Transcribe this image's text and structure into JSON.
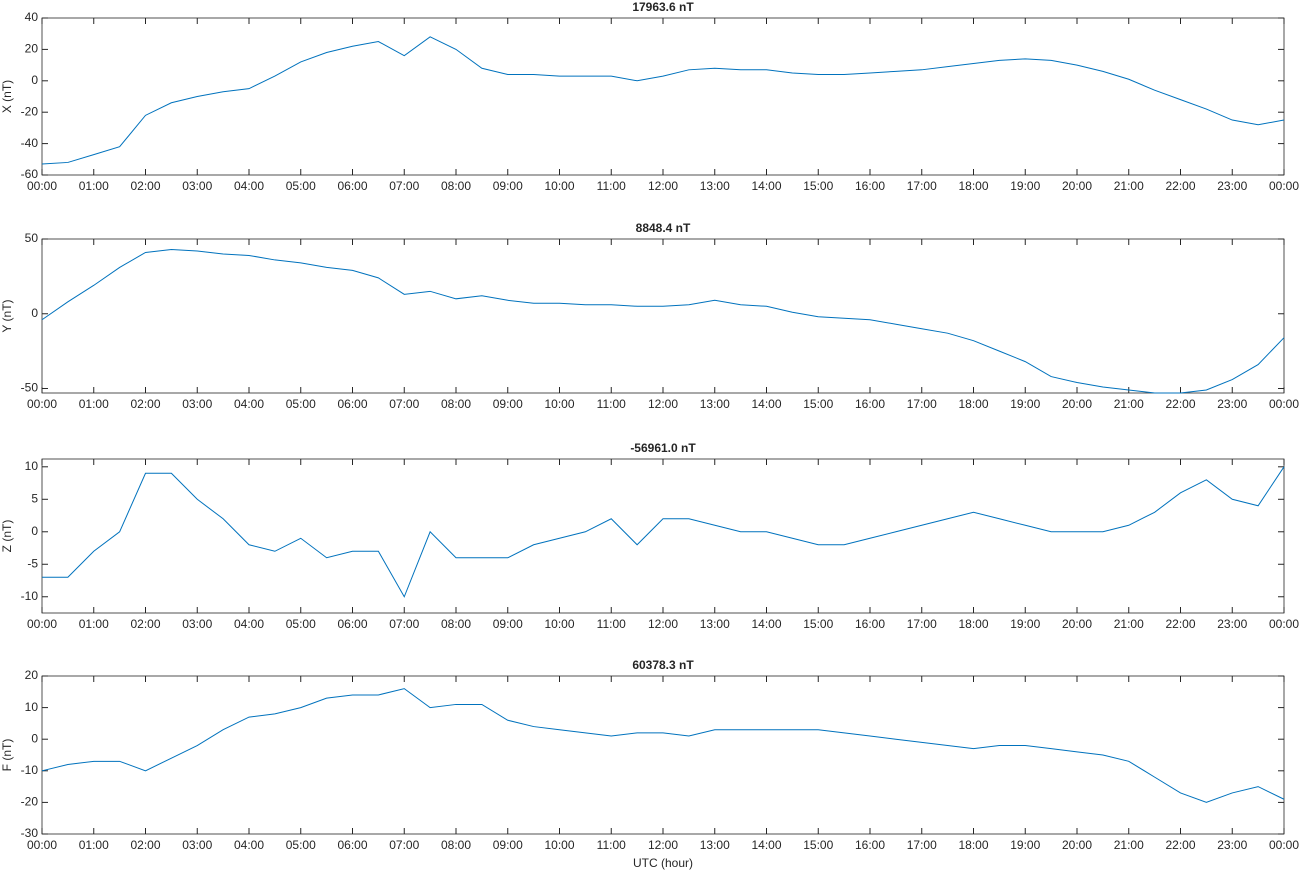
{
  "chart_data": [
    {
      "type": "line",
      "title": "17963.6 nT",
      "ylabel": "X (nT)",
      "color": "#0072bd",
      "x": [
        0,
        0.5,
        1,
        1.5,
        2,
        2.5,
        3,
        3.5,
        4,
        4.5,
        5,
        5.5,
        6,
        6.5,
        7,
        7.5,
        8,
        8.5,
        9,
        9.5,
        10,
        10.5,
        11,
        11.5,
        12,
        12.5,
        13,
        13.5,
        14,
        14.5,
        15,
        15.5,
        16,
        16.5,
        17,
        17.5,
        18,
        18.5,
        19,
        19.5,
        20,
        20.5,
        21,
        21.5,
        22,
        22.5,
        23,
        23.5,
        24
      ],
      "values": [
        -53,
        -52,
        -47,
        -42,
        -22,
        -14,
        -10,
        -7,
        -5,
        3,
        12,
        18,
        22,
        25,
        16,
        28,
        20,
        8,
        4,
        4,
        3,
        3,
        3,
        0,
        3,
        7,
        8,
        7,
        7,
        5,
        4,
        4,
        5,
        6,
        7,
        9,
        11,
        13,
        14,
        13,
        10,
        6,
        1,
        -6,
        -12,
        -18,
        -25,
        -28,
        -25
      ],
      "xlim": [
        0,
        24
      ],
      "xticks": [
        {
          "value": 0,
          "label": "00:00"
        },
        {
          "value": 1,
          "label": "01:00"
        },
        {
          "value": 2,
          "label": "02:00"
        },
        {
          "value": 3,
          "label": "03:00"
        },
        {
          "value": 4,
          "label": "04:00"
        },
        {
          "value": 5,
          "label": "05:00"
        },
        {
          "value": 6,
          "label": "06:00"
        },
        {
          "value": 7,
          "label": "07:00"
        },
        {
          "value": 8,
          "label": "08:00"
        },
        {
          "value": 9,
          "label": "09:00"
        },
        {
          "value": 10,
          "label": "10:00"
        },
        {
          "value": 11,
          "label": "11:00"
        },
        {
          "value": 12,
          "label": "12:00"
        },
        {
          "value": 13,
          "label": "13:00"
        },
        {
          "value": 14,
          "label": "14:00"
        },
        {
          "value": 15,
          "label": "15:00"
        },
        {
          "value": 16,
          "label": "16:00"
        },
        {
          "value": 17,
          "label": "17:00"
        },
        {
          "value": 18,
          "label": "18:00"
        },
        {
          "value": 19,
          "label": "19:00"
        },
        {
          "value": 20,
          "label": "20:00"
        },
        {
          "value": 21,
          "label": "21:00"
        },
        {
          "value": 22,
          "label": "22:00"
        },
        {
          "value": 23,
          "label": "23:00"
        },
        {
          "value": 24,
          "label": "00:00"
        }
      ],
      "ylim": [
        -60,
        40
      ],
      "yticks": [
        -60,
        -40,
        -20,
        0,
        20,
        40
      ]
    },
    {
      "type": "line",
      "title": "8848.4 nT",
      "ylabel": "Y (nT)",
      "color": "#0072bd",
      "x": [
        0,
        0.5,
        1,
        1.5,
        2,
        2.5,
        3,
        3.5,
        4,
        4.5,
        5,
        5.5,
        6,
        6.5,
        7,
        7.5,
        8,
        8.5,
        9,
        9.5,
        10,
        10.5,
        11,
        11.5,
        12,
        12.5,
        13,
        13.5,
        14,
        14.5,
        15,
        15.5,
        16,
        16.5,
        17,
        17.5,
        18,
        18.5,
        19,
        19.5,
        20,
        20.5,
        21,
        21.5,
        22,
        22.5,
        23,
        23.5,
        24
      ],
      "values": [
        -4,
        8,
        19,
        31,
        41,
        43,
        42,
        40,
        39,
        36,
        34,
        31,
        29,
        24,
        13,
        15,
        10,
        12,
        9,
        7,
        7,
        6,
        6,
        5,
        5,
        6,
        9,
        6,
        5,
        1,
        -2,
        -3,
        -4,
        -7,
        -10,
        -13,
        -18,
        -25,
        -32,
        -42,
        -46,
        -49,
        -51,
        -53,
        -53,
        -51,
        -44,
        -34,
        -16
      ],
      "xlim": [
        0,
        24
      ],
      "xticks": [
        {
          "value": 0,
          "label": "00:00"
        },
        {
          "value": 1,
          "label": "01:00"
        },
        {
          "value": 2,
          "label": "02:00"
        },
        {
          "value": 3,
          "label": "03:00"
        },
        {
          "value": 4,
          "label": "04:00"
        },
        {
          "value": 5,
          "label": "05:00"
        },
        {
          "value": 6,
          "label": "06:00"
        },
        {
          "value": 7,
          "label": "07:00"
        },
        {
          "value": 8,
          "label": "08:00"
        },
        {
          "value": 9,
          "label": "09:00"
        },
        {
          "value": 10,
          "label": "10:00"
        },
        {
          "value": 11,
          "label": "11:00"
        },
        {
          "value": 12,
          "label": "12:00"
        },
        {
          "value": 13,
          "label": "13:00"
        },
        {
          "value": 14,
          "label": "14:00"
        },
        {
          "value": 15,
          "label": "15:00"
        },
        {
          "value": 16,
          "label": "16:00"
        },
        {
          "value": 17,
          "label": "17:00"
        },
        {
          "value": 18,
          "label": "18:00"
        },
        {
          "value": 19,
          "label": "19:00"
        },
        {
          "value": 20,
          "label": "20:00"
        },
        {
          "value": 21,
          "label": "21:00"
        },
        {
          "value": 22,
          "label": "22:00"
        },
        {
          "value": 23,
          "label": "23:00"
        },
        {
          "value": 24,
          "label": "00:00"
        }
      ],
      "ylim": [
        -53,
        50
      ],
      "yticks": [
        -50,
        0,
        50
      ]
    },
    {
      "type": "line",
      "title": "-56961.0 nT",
      "ylabel": "Z (nT)",
      "color": "#0072bd",
      "x": [
        0,
        0.5,
        1,
        1.5,
        2,
        2.5,
        3,
        3.5,
        4,
        4.5,
        5,
        5.5,
        6,
        6.5,
        7,
        7.5,
        8,
        8.5,
        9,
        9.5,
        10,
        10.5,
        11,
        11.5,
        12,
        12.5,
        13,
        13.5,
        14,
        14.5,
        15,
        15.5,
        16,
        16.5,
        17,
        17.5,
        18,
        18.5,
        19,
        19.5,
        20,
        20.5,
        21,
        21.5,
        22,
        22.5,
        23,
        23.5,
        24
      ],
      "values": [
        -7,
        -7,
        -3,
        0,
        9,
        9,
        5,
        2,
        -2,
        -3,
        -1,
        -4,
        -3,
        -3,
        -10,
        0,
        -4,
        -4,
        -4,
        -2,
        -1,
        0,
        2,
        -2,
        2,
        2,
        1,
        0,
        0,
        -1,
        -2,
        -2,
        -1,
        0,
        1,
        2,
        3,
        2,
        1,
        0,
        0,
        0,
        1,
        3,
        6,
        8,
        5,
        4,
        10
      ],
      "xlim": [
        0,
        24
      ],
      "xticks": [
        {
          "value": 0,
          "label": "00:00"
        },
        {
          "value": 1,
          "label": "01:00"
        },
        {
          "value": 2,
          "label": "02:00"
        },
        {
          "value": 3,
          "label": "03:00"
        },
        {
          "value": 4,
          "label": "04:00"
        },
        {
          "value": 5,
          "label": "05:00"
        },
        {
          "value": 6,
          "label": "06:00"
        },
        {
          "value": 7,
          "label": "07:00"
        },
        {
          "value": 8,
          "label": "08:00"
        },
        {
          "value": 9,
          "label": "09:00"
        },
        {
          "value": 10,
          "label": "10:00"
        },
        {
          "value": 11,
          "label": "11:00"
        },
        {
          "value": 12,
          "label": "12:00"
        },
        {
          "value": 13,
          "label": "13:00"
        },
        {
          "value": 14,
          "label": "14:00"
        },
        {
          "value": 15,
          "label": "15:00"
        },
        {
          "value": 16,
          "label": "16:00"
        },
        {
          "value": 17,
          "label": "17:00"
        },
        {
          "value": 18,
          "label": "18:00"
        },
        {
          "value": 19,
          "label": "19:00"
        },
        {
          "value": 20,
          "label": "20:00"
        },
        {
          "value": 21,
          "label": "21:00"
        },
        {
          "value": 22,
          "label": "22:00"
        },
        {
          "value": 23,
          "label": "23:00"
        },
        {
          "value": 24,
          "label": "00:00"
        }
      ],
      "ylim": [
        -12.5,
        11.2
      ],
      "yticks": [
        -10,
        -5,
        0,
        5,
        10
      ]
    },
    {
      "type": "line",
      "title": "60378.3 nT",
      "ylabel": "F (nT)",
      "xlabel": "UTC (hour)",
      "color": "#0072bd",
      "x": [
        0,
        0.5,
        1,
        1.5,
        2,
        2.5,
        3,
        3.5,
        4,
        4.5,
        5,
        5.5,
        6,
        6.5,
        7,
        7.5,
        8,
        8.5,
        9,
        9.5,
        10,
        10.5,
        11,
        11.5,
        12,
        12.5,
        13,
        13.5,
        14,
        14.5,
        15,
        15.5,
        16,
        16.5,
        17,
        17.5,
        18,
        18.5,
        19,
        19.5,
        20,
        20.5,
        21,
        21.5,
        22,
        22.5,
        23,
        23.5,
        24
      ],
      "values": [
        -10,
        -8,
        -7,
        -7,
        -10,
        -6,
        -2,
        3,
        7,
        8,
        10,
        13,
        14,
        14,
        16,
        10,
        11,
        11,
        6,
        4,
        3,
        2,
        1,
        2,
        2,
        1,
        3,
        3,
        3,
        3,
        3,
        2,
        1,
        0,
        -1,
        -2,
        -3,
        -2,
        -2,
        -3,
        -4,
        -5,
        -7,
        -12,
        -17,
        -20,
        -17,
        -15,
        -19
      ],
      "xlim": [
        0,
        24
      ],
      "xticks": [
        {
          "value": 0,
          "label": "00:00"
        },
        {
          "value": 1,
          "label": "01:00"
        },
        {
          "value": 2,
          "label": "02:00"
        },
        {
          "value": 3,
          "label": "03:00"
        },
        {
          "value": 4,
          "label": "04:00"
        },
        {
          "value": 5,
          "label": "05:00"
        },
        {
          "value": 6,
          "label": "06:00"
        },
        {
          "value": 7,
          "label": "07:00"
        },
        {
          "value": 8,
          "label": "08:00"
        },
        {
          "value": 9,
          "label": "09:00"
        },
        {
          "value": 10,
          "label": "10:00"
        },
        {
          "value": 11,
          "label": "11:00"
        },
        {
          "value": 12,
          "label": "12:00"
        },
        {
          "value": 13,
          "label": "13:00"
        },
        {
          "value": 14,
          "label": "14:00"
        },
        {
          "value": 15,
          "label": "15:00"
        },
        {
          "value": 16,
          "label": "16:00"
        },
        {
          "value": 17,
          "label": "17:00"
        },
        {
          "value": 18,
          "label": "18:00"
        },
        {
          "value": 19,
          "label": "19:00"
        },
        {
          "value": 20,
          "label": "20:00"
        },
        {
          "value": 21,
          "label": "21:00"
        },
        {
          "value": 22,
          "label": "22:00"
        },
        {
          "value": 23,
          "label": "23:00"
        },
        {
          "value": 24,
          "label": "00:00"
        }
      ],
      "ylim": [
        -30,
        20
      ],
      "yticks": [
        -30,
        -20,
        -10,
        0,
        10,
        20
      ]
    }
  ]
}
